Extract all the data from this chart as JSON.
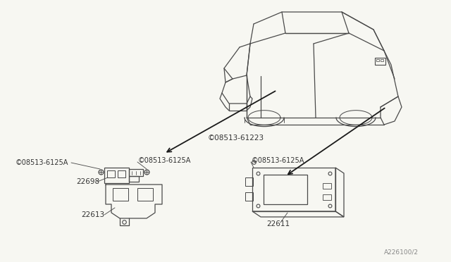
{
  "bg_color": "#f7f7f2",
  "line_color": "#4a4a4a",
  "text_color": "#333333",
  "part_number_label": "A226100/2",
  "labels": {
    "screw_left": "©08513-6125A",
    "screw_mid": "©08513-6125A",
    "screw_top": "©08513-61223",
    "part_22698": "22698",
    "part_22613": "22613",
    "part_22611": "22611"
  },
  "car_color": "#4a4a4a",
  "arrow_color": "#1a1a1a"
}
